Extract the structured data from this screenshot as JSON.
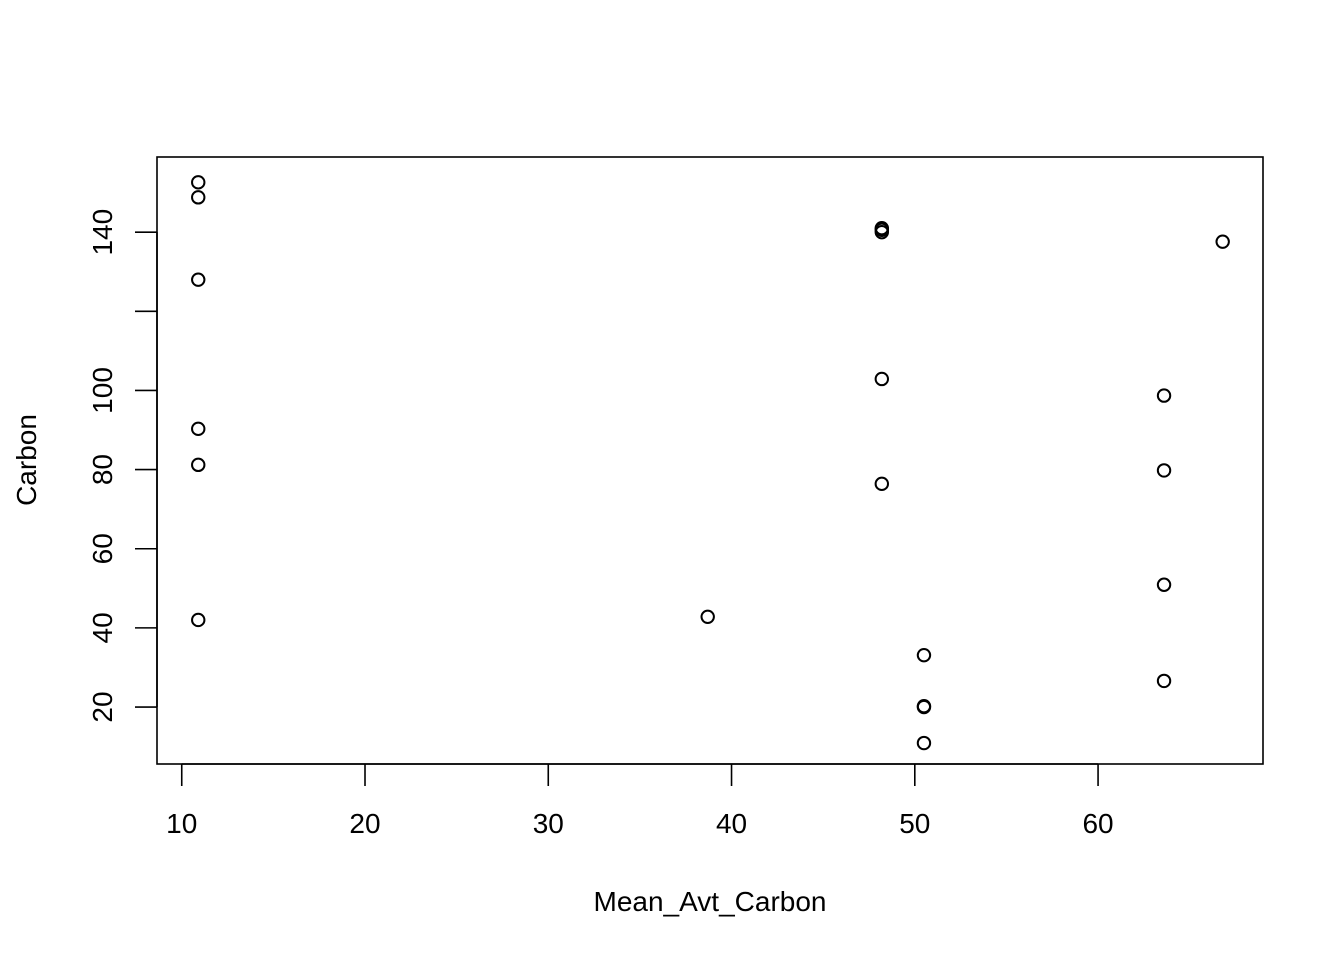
{
  "chart_data": {
    "type": "scatter",
    "title": "",
    "xlabel": "Mean_Avt_Carbon",
    "ylabel": "Carbon",
    "xlim": [
      8.65,
      69.0
    ],
    "ylim": [
      5.6,
      159.0
    ],
    "xticks": [
      10,
      20,
      30,
      40,
      50,
      60
    ],
    "xtick_labels": [
      "10",
      "20",
      "30",
      "40",
      "50",
      "60"
    ],
    "yticks": [
      20,
      40,
      60,
      80,
      100,
      120,
      140
    ],
    "ytick_labels": [
      "20",
      "40",
      "60",
      "80",
      "100",
      "",
      "140"
    ],
    "grid": false,
    "legend": "none",
    "marker": "open-circle",
    "color": "#000000",
    "x": [
      10.9,
      10.9,
      10.9,
      10.9,
      10.9,
      10.9,
      38.7,
      48.2,
      48.2,
      48.2,
      48.2,
      48.2,
      50.5,
      50.5,
      50.5,
      50.5,
      63.6,
      63.6,
      63.6,
      63.6,
      66.8
    ],
    "y": [
      42.0,
      81.2,
      90.3,
      128.0,
      148.8,
      152.6,
      42.8,
      76.4,
      102.9,
      140.0,
      140.6,
      141.0,
      10.9,
      20.0,
      20.2,
      33.1,
      26.6,
      50.9,
      79.8,
      98.7,
      137.6
    ]
  }
}
